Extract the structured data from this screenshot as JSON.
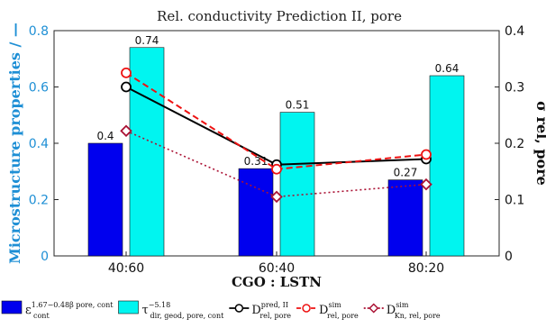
{
  "chart_data": {
    "type": "bar",
    "title": "Rel. conductivity Prediction II, pore",
    "xlabel": "CGO : LSTN",
    "ylabel": "Microstructure properties / —",
    "y2label": "σ rel, pore",
    "categories": [
      "40:60",
      "60:40",
      "80:20"
    ],
    "ylim": [
      0,
      0.8
    ],
    "y2lim": [
      0,
      0.4
    ],
    "yticks": [
      "0",
      "0.2",
      "0.4",
      "0.6",
      "0.8"
    ],
    "y2ticks": [
      "0",
      "0.1",
      "0.2",
      "0.3",
      "0.4"
    ],
    "grid": false,
    "legend_position": "bottom",
    "bar_series": [
      {
        "legend": {
          "base": "ε",
          "sub": "cont",
          "sup": "1.67−0.48β pore, cont"
        },
        "color": "#0000ee",
        "values": [
          0.4,
          0.31,
          0.27
        ],
        "labels": [
          "0.4",
          "0.31",
          "0.27"
        ]
      },
      {
        "legend": {
          "base": "τ",
          "sub": "dir, geod, pore, cont",
          "sup": "−5.18"
        },
        "color": "#00f5f0",
        "values": [
          0.74,
          0.51,
          0.64
        ],
        "labels": [
          "0.74",
          "0.51",
          "0.64"
        ]
      }
    ],
    "line_series": [
      {
        "legend": {
          "base": "D",
          "sub": "rel, pore",
          "sup": "pred, II"
        },
        "color": "#000000",
        "style": "solid",
        "marker": "circle",
        "axis": "right",
        "values": [
          0.3,
          0.162,
          0.172
        ]
      },
      {
        "legend": {
          "base": "D",
          "sub": "rel, pore",
          "sup": "sim"
        },
        "color": "#ee1111",
        "style": "dashed",
        "marker": "circle",
        "axis": "right",
        "values": [
          0.325,
          0.154,
          0.18
        ]
      },
      {
        "legend": {
          "base": "D",
          "sub": "Kn, rel, pore",
          "sup": "sim"
        },
        "color": "#aa1133",
        "style": "dotted",
        "marker": "diamond",
        "axis": "right",
        "values": [
          0.222,
          0.105,
          0.127
        ]
      }
    ]
  }
}
